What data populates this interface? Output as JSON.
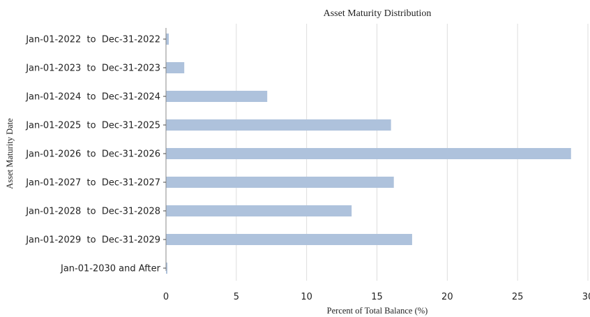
{
  "chart_data": {
    "type": "bar",
    "orientation": "horizontal",
    "title": "Asset Maturity Distribution",
    "xlabel": "Percent of Total Balance (%)",
    "ylabel": "Asset Maturity Date",
    "xlim": [
      0,
      30
    ],
    "xticks": [
      "0",
      "5",
      "10",
      "15",
      "20",
      "25",
      "30"
    ],
    "grid": "vertical",
    "bar_color": "#aec2dc",
    "categories": [
      "Jan-01-2022  to  Dec-31-2022",
      "Jan-01-2023  to  Dec-31-2023",
      "Jan-01-2024  to  Dec-31-2024",
      "Jan-01-2025  to  Dec-31-2025",
      "Jan-01-2026  to  Dec-31-2026",
      "Jan-01-2027  to  Dec-31-2027",
      "Jan-01-2028  to  Dec-31-2028",
      "Jan-01-2029  to  Dec-31-2029",
      "Jan-01-2030 and After"
    ],
    "values": [
      0.2,
      1.3,
      7.2,
      16.0,
      28.8,
      16.2,
      13.2,
      17.5,
      0.1
    ]
  }
}
